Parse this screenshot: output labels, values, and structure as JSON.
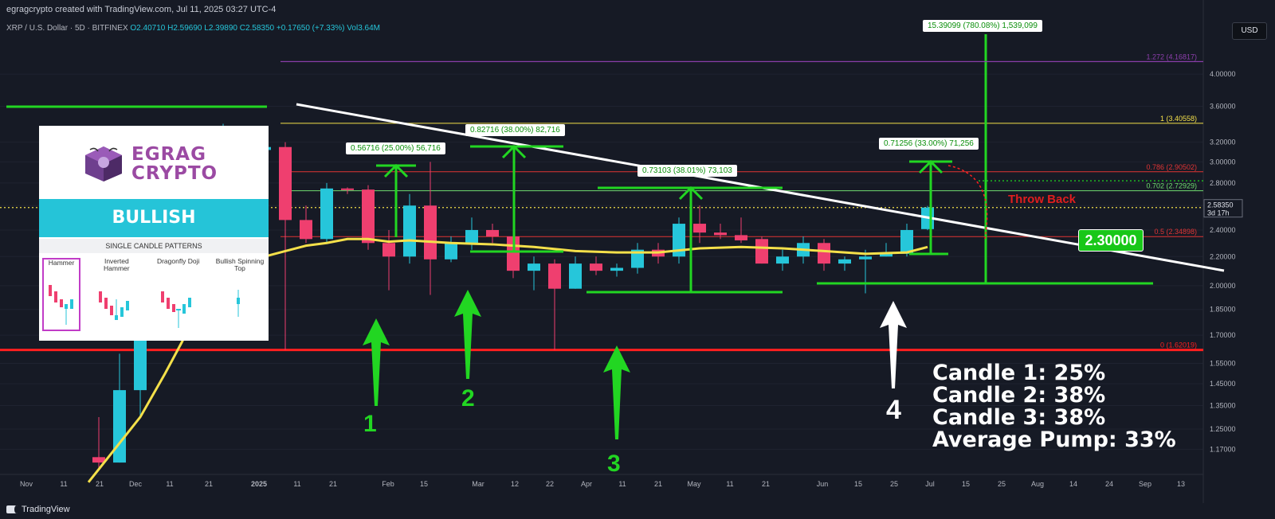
{
  "header": {
    "credit": "egragcrypto created with TradingView.com, Jul 11, 2025 03:27 UTC-4",
    "symbol": "XRP / U.S. Dollar · 5D · BITFINEX",
    "ohlc": "O2.40710 H2.59690 L2.39890 C2.58350 +0.17650 (+7.33%) Vol3.64M",
    "currency": "USD"
  },
  "footer": {
    "brand": "TradingView"
  },
  "panel": {
    "brand_line1": "EGRAG",
    "brand_line2": "CRYPTO",
    "banner": "BULLISH",
    "subtitle": "SINGLE CANDLE PATTERNS",
    "patterns": [
      "Hammer",
      "Inverted Hammer",
      "Dragonfly Doji",
      "Bullish Spinning Top"
    ]
  },
  "annotations": {
    "labels": [
      "1",
      "2",
      "3",
      "4"
    ],
    "throw_back": "Throw Back",
    "support_label": "2.30000",
    "stats": [
      "Candle 1:  25%",
      "Candle 2:  38%",
      "Candle 3:  38%",
      "Average Pump: 33%"
    ],
    "measure_labels": [
      "0.56716 (25.00%) 56,716",
      "0.82716 (38.00%) 82,716",
      "0.73103 (38.01%) 73,103",
      "0.71256 (33.00%) 71,256",
      "15.39099 (780.08%) 1,539,099"
    ]
  },
  "colors": {
    "background": "#161a25",
    "up": "#26c6da",
    "down": "#ef3f6f",
    "green": "#22d622",
    "red": "#ff1f1f",
    "yellow": "#f4e04a",
    "purple": "#8e3fae"
  },
  "chart_data": {
    "type": "candlestick",
    "symbol": "XRP / U.S. Dollar",
    "interval": "5D",
    "exchange": "BITFINEX",
    "y_scale": "log",
    "ylim": [
      1.1,
      4.5
    ],
    "y_ticks": [
      "4.00000",
      "3.60000",
      "3.20000",
      "3.00000",
      "2.80000",
      "2.60000",
      "2.40000",
      "2.20000",
      "2.00000",
      "1.85000",
      "1.70000",
      "1.55000",
      "1.45000",
      "1.35000",
      "1.25000",
      "1.17000"
    ],
    "x_ticks": [
      "Nov",
      "11",
      "21",
      "Dec",
      "11",
      "21",
      "2025",
      "11",
      "21",
      "Feb",
      "15",
      "Mar",
      "12",
      "22",
      "Apr",
      "11",
      "21",
      "May",
      "11",
      "21",
      "Jun",
      "15",
      "25",
      "Jul",
      "15",
      "25",
      "Aug",
      "14",
      "24",
      "Sep",
      "13"
    ],
    "current_price": {
      "value": 2.5835,
      "label": "2.58350",
      "countdown": "3d 17h"
    },
    "fib_levels": [
      {
        "label": "1.272 (4.16817)",
        "value": 4.16817,
        "color": "#8e3fae"
      },
      {
        "label": "1 (3.40558)",
        "value": 3.40558,
        "color": "#f4e04a"
      },
      {
        "label": "0.786 (2.90502)",
        "value": 2.90502,
        "color": "#e03434"
      },
      {
        "label": "0.702 (2.72929)",
        "value": 2.72929,
        "color": "#6fdc6f"
      },
      {
        "label": "0.5 (2.34898)",
        "value": 2.34898,
        "color": "#e03434"
      },
      {
        "label": "0 (1.62019)",
        "value": 1.62019,
        "color": "#ff1f1f"
      }
    ],
    "candles": [
      {
        "o": 1.14,
        "h": 1.3,
        "l": 1.1,
        "c": 1.12
      },
      {
        "o": 1.12,
        "h": 1.6,
        "l": 1.12,
        "c": 1.42
      },
      {
        "o": 1.42,
        "h": 2.9,
        "l": 1.3,
        "c": 2.58
      },
      {
        "o": 2.4,
        "h": 2.6,
        "l": 2.3,
        "c": 2.5
      },
      {
        "o": 2.5,
        "h": 2.5,
        "l": 2.22,
        "c": 2.35
      },
      {
        "o": 2.35,
        "h": 3.3,
        "l": 2.3,
        "c": 3.2
      },
      {
        "o": 3.1,
        "h": 3.4,
        "l": 2.9,
        "c": 3.1
      },
      {
        "o": 3.1,
        "h": 3.3,
        "l": 2.95,
        "c": 3.12
      },
      {
        "o": 3.12,
        "h": 3.28,
        "l": 2.6,
        "c": 3.15
      },
      {
        "o": 3.15,
        "h": 3.2,
        "l": 1.62,
        "c": 2.48
      },
      {
        "o": 2.48,
        "h": 2.6,
        "l": 2.3,
        "c": 2.33
      },
      {
        "o": 2.33,
        "h": 2.8,
        "l": 2.3,
        "c": 2.75
      },
      {
        "o": 2.75,
        "h": 2.76,
        "l": 2.7,
        "c": 2.74
      },
      {
        "o": 2.74,
        "h": 2.78,
        "l": 2.25,
        "c": 2.3
      },
      {
        "o": 2.3,
        "h": 2.4,
        "l": 1.97,
        "c": 2.2
      },
      {
        "o": 2.2,
        "h": 2.7,
        "l": 2.15,
        "c": 2.6
      },
      {
        "o": 2.6,
        "h": 3.0,
        "l": 1.94,
        "c": 2.18
      },
      {
        "o": 2.18,
        "h": 2.35,
        "l": 2.16,
        "c": 2.3
      },
      {
        "o": 2.3,
        "h": 2.5,
        "l": 2.25,
        "c": 2.4
      },
      {
        "o": 2.4,
        "h": 2.45,
        "l": 2.3,
        "c": 2.35
      },
      {
        "o": 2.35,
        "h": 2.4,
        "l": 2.05,
        "c": 2.1
      },
      {
        "o": 2.1,
        "h": 2.2,
        "l": 1.97,
        "c": 2.15
      },
      {
        "o": 2.15,
        "h": 2.18,
        "l": 1.62,
        "c": 1.98
      },
      {
        "o": 1.98,
        "h": 2.2,
        "l": 1.98,
        "c": 2.15
      },
      {
        "o": 2.15,
        "h": 2.2,
        "l": 2.07,
        "c": 2.1
      },
      {
        "o": 2.1,
        "h": 2.15,
        "l": 2.06,
        "c": 2.12
      },
      {
        "o": 2.12,
        "h": 2.3,
        "l": 2.08,
        "c": 2.25
      },
      {
        "o": 2.25,
        "h": 2.3,
        "l": 2.15,
        "c": 2.2
      },
      {
        "o": 2.2,
        "h": 2.5,
        "l": 2.15,
        "c": 2.45
      },
      {
        "o": 2.45,
        "h": 2.6,
        "l": 2.3,
        "c": 2.38
      },
      {
        "o": 2.38,
        "h": 2.45,
        "l": 2.33,
        "c": 2.36
      },
      {
        "o": 2.36,
        "h": 2.5,
        "l": 2.3,
        "c": 2.32
      },
      {
        "o": 2.33,
        "h": 2.35,
        "l": 2.15,
        "c": 2.15
      },
      {
        "o": 2.15,
        "h": 2.25,
        "l": 2.1,
        "c": 2.2
      },
      {
        "o": 2.2,
        "h": 2.35,
        "l": 2.15,
        "c": 2.3
      },
      {
        "o": 2.3,
        "h": 2.33,
        "l": 2.1,
        "c": 2.15
      },
      {
        "o": 2.15,
        "h": 2.2,
        "l": 2.1,
        "c": 2.18
      },
      {
        "o": 2.18,
        "h": 2.25,
        "l": 1.95,
        "c": 2.2
      },
      {
        "o": 2.2,
        "h": 2.3,
        "l": 2.2,
        "c": 2.22
      },
      {
        "o": 2.22,
        "h": 2.45,
        "l": 2.2,
        "c": 2.4
      },
      {
        "o": 2.4071,
        "h": 2.5969,
        "l": 2.3989,
        "c": 2.5835
      }
    ],
    "ma_line": [
      {
        "i": -0.5,
        "v": 1.05
      },
      {
        "i": 2,
        "v": 1.3
      },
      {
        "i": 3.2,
        "v": 1.5
      },
      {
        "i": 4,
        "v": 1.66
      },
      {
        "i": 5,
        "v": 1.9
      },
      {
        "i": 6,
        "v": 2.05
      },
      {
        "i": 7,
        "v": 2.14
      },
      {
        "i": 8,
        "v": 2.2
      },
      {
        "i": 9,
        "v": 2.24
      },
      {
        "i": 10,
        "v": 2.28
      },
      {
        "i": 11,
        "v": 2.3
      },
      {
        "i": 12,
        "v": 2.33
      },
      {
        "i": 13,
        "v": 2.33
      },
      {
        "i": 14,
        "v": 2.31
      },
      {
        "i": 15,
        "v": 2.32
      },
      {
        "i": 17,
        "v": 2.3
      },
      {
        "i": 19,
        "v": 2.29
      },
      {
        "i": 21,
        "v": 2.27
      },
      {
        "i": 23,
        "v": 2.24
      },
      {
        "i": 25,
        "v": 2.23
      },
      {
        "i": 27,
        "v": 2.23
      },
      {
        "i": 29,
        "v": 2.26
      },
      {
        "i": 31,
        "v": 2.27
      },
      {
        "i": 33,
        "v": 2.26
      },
      {
        "i": 35,
        "v": 2.24
      },
      {
        "i": 37,
        "v": 2.22
      },
      {
        "i": 39,
        "v": 2.23
      },
      {
        "i": 40,
        "v": 2.27
      }
    ]
  }
}
